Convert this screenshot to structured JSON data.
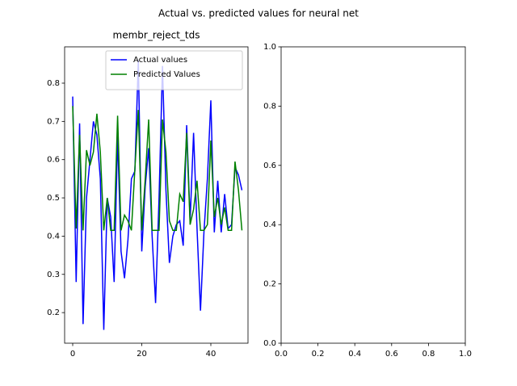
{
  "title": "Actual vs. predicted values for neural net",
  "chart_data": [
    {
      "type": "line",
      "title": "membr_reject_tds",
      "x": [
        0,
        1,
        2,
        3,
        4,
        5,
        6,
        7,
        8,
        9,
        10,
        11,
        12,
        13,
        14,
        15,
        16,
        17,
        18,
        19,
        20,
        21,
        22,
        23,
        24,
        25,
        26,
        27,
        28,
        29,
        30,
        31,
        32,
        33,
        34,
        35,
        36,
        37,
        38,
        39,
        40,
        41,
        42,
        43,
        44,
        45,
        46,
        47,
        48,
        49
      ],
      "series": [
        {
          "name": "Actual values",
          "color": "#0000ff",
          "values": [
            0.765,
            0.28,
            0.695,
            0.17,
            0.5,
            0.6,
            0.7,
            0.665,
            0.55,
            0.155,
            0.5,
            0.45,
            0.28,
            0.66,
            0.36,
            0.29,
            0.39,
            0.55,
            0.57,
            0.86,
            0.36,
            0.53,
            0.63,
            0.4,
            0.225,
            0.5,
            0.845,
            0.52,
            0.33,
            0.4,
            0.43,
            0.44,
            0.375,
            0.69,
            0.44,
            0.67,
            0.42,
            0.205,
            0.41,
            0.55,
            0.755,
            0.41,
            0.545,
            0.41,
            0.51,
            0.42,
            0.43,
            0.58,
            0.56,
            0.52
          ]
        },
        {
          "name": "Predicted Values",
          "color": "#008000",
          "values": [
            0.74,
            0.42,
            0.665,
            0.415,
            0.625,
            0.585,
            0.62,
            0.72,
            0.62,
            0.415,
            0.5,
            0.415,
            0.415,
            0.715,
            0.415,
            0.455,
            0.44,
            0.415,
            0.575,
            0.73,
            0.415,
            0.55,
            0.705,
            0.415,
            0.415,
            0.415,
            0.705,
            0.62,
            0.44,
            0.415,
            0.415,
            0.51,
            0.49,
            0.67,
            0.43,
            0.47,
            0.545,
            0.415,
            0.415,
            0.43,
            0.65,
            0.45,
            0.5,
            0.43,
            0.475,
            0.415,
            0.415,
            0.595,
            0.52,
            0.415
          ]
        }
      ],
      "xlim": [
        -2.34,
        50.76
      ],
      "xticks": [
        0,
        20,
        40
      ],
      "ylim": [
        0.12,
        0.895
      ],
      "yticks": [
        0.2,
        0.3,
        0.4,
        0.5,
        0.6,
        0.7,
        0.8
      ],
      "legend": "upper right"
    },
    {
      "type": "line",
      "series": [],
      "xlim": [
        0,
        1
      ],
      "xticks": [
        {
          "value": 0,
          "label": "0.0"
        },
        0.2,
        0.4,
        0.6,
        0.8,
        {
          "value": 1,
          "label": "1.0"
        }
      ],
      "ylim": [
        0,
        1
      ],
      "yticks": [
        {
          "value": 0,
          "label": "0.0"
        },
        0.2,
        0.4,
        0.6,
        0.8,
        {
          "value": 1,
          "label": "1.0"
        }
      ]
    }
  ]
}
